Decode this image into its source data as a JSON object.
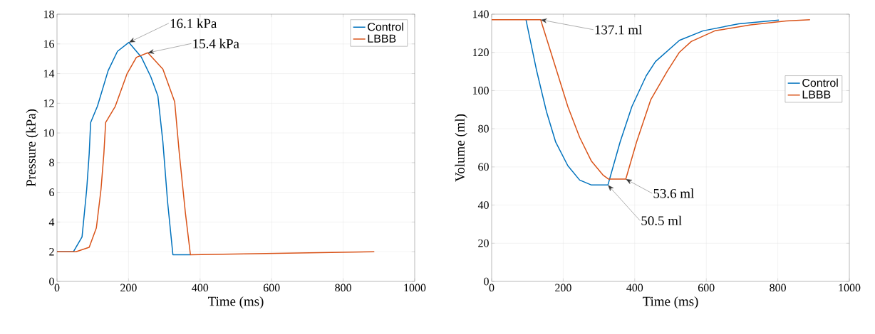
{
  "chart_data": [
    {
      "type": "line",
      "xlabel": "Time (ms)",
      "ylabel": "Pressure (kPa)",
      "xlim": [
        0,
        1000
      ],
      "ylim": [
        0,
        18
      ],
      "xticks": [
        0,
        200,
        400,
        600,
        800,
        1000
      ],
      "yticks": [
        0,
        2,
        4,
        6,
        8,
        10,
        12,
        14,
        16,
        18
      ],
      "grid": true,
      "legend": "top right",
      "series": [
        {
          "name": "Control",
          "color": "#0072bd",
          "x": [
            0,
            46,
            70,
            83,
            90,
            94,
            113,
            143,
            169,
            201,
            236,
            262,
            282,
            296,
            309,
            324,
            373
          ],
          "values": [
            2.0,
            2.0,
            3.0,
            6.2,
            8.6,
            10.7,
            11.8,
            14.2,
            15.5,
            16.1,
            15.1,
            13.8,
            12.5,
            9.4,
            5.4,
            1.8,
            1.8
          ]
        },
        {
          "name": "LBBB",
          "color": "#d95319",
          "x": [
            0,
            53,
            90,
            110,
            123,
            131,
            136,
            163,
            196,
            222,
            254,
            296,
            329,
            342,
            359,
            373,
            887
          ],
          "values": [
            2.0,
            2.0,
            2.3,
            3.6,
            6.2,
            8.6,
            10.7,
            11.8,
            14.0,
            15.1,
            15.4,
            14.3,
            12.1,
            8.6,
            4.6,
            1.8,
            2.0
          ]
        }
      ],
      "annotations": [
        {
          "text": "16.1 kPa",
          "x": 201,
          "y": 16.1
        },
        {
          "text": "15.4 kPa",
          "x": 254,
          "y": 15.4
        }
      ]
    },
    {
      "type": "line",
      "xlabel": "Time (ms)",
      "ylabel": "Volume (ml)",
      "xlim": [
        0,
        1000
      ],
      "ylim": [
        0,
        140
      ],
      "xticks": [
        0,
        200,
        400,
        600,
        800,
        1000
      ],
      "yticks": [
        0,
        20,
        40,
        60,
        80,
        100,
        120,
        140
      ],
      "grid": true,
      "legend": "right",
      "series": [
        {
          "name": "Control",
          "color": "#0072bd",
          "x": [
            96,
            126,
            153,
            179,
            213,
            246,
            279,
            325,
            359,
            392,
            432,
            458,
            525,
            591,
            691,
            803
          ],
          "values": [
            137.1,
            110.2,
            89.1,
            73.0,
            60.6,
            53.1,
            50.5,
            50.5,
            73.0,
            91.6,
            107.7,
            115.2,
            126.3,
            131.3,
            135.0,
            136.9
          ]
        },
        {
          "name": "LBBB",
          "color": "#d95319",
          "x": [
            0,
            137,
            182,
            213,
            246,
            279,
            312,
            327,
            375,
            405,
            445,
            491,
            525,
            558,
            624,
            724,
            823,
            890
          ],
          "values": [
            137.1,
            137.1,
            110.2,
            91.6,
            75.5,
            63.0,
            55.6,
            53.6,
            53.6,
            73.0,
            95.3,
            110.2,
            120.1,
            125.7,
            131.3,
            134.4,
            136.5,
            137.1
          ]
        }
      ],
      "annotations": [
        {
          "text": "137.1 ml",
          "x": 137,
          "y": 137.1
        },
        {
          "text": "53.6 ml",
          "x": 375,
          "y": 53.6
        },
        {
          "text": "50.5 ml",
          "x": 325,
          "y": 50.5
        }
      ]
    }
  ]
}
